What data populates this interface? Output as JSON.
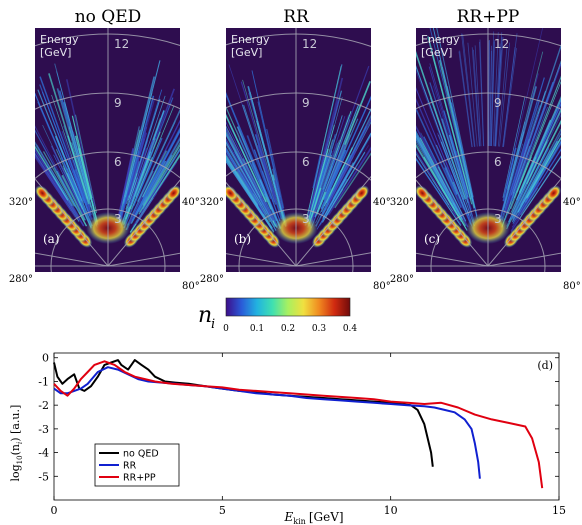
{
  "panels": [
    {
      "title": "no QED",
      "label": "(a)",
      "energy_title": "Energy",
      "energy_unit": "[GeV]",
      "ring_labels": [
        "12",
        "9",
        "6",
        "3"
      ],
      "angle_labels": [
        "320°",
        "40°",
        "280°",
        "80°"
      ]
    },
    {
      "title": "RR",
      "label": "(b)",
      "energy_title": "Energy",
      "energy_unit": "[GeV]",
      "ring_labels": [
        "12",
        "9",
        "6",
        "3"
      ],
      "angle_labels": [
        "320°",
        "40°",
        "280°",
        "80°"
      ]
    },
    {
      "title": "RR+PP",
      "label": "(c)",
      "energy_title": "Energy",
      "energy_unit": "[GeV]",
      "ring_labels": [
        "12",
        "9",
        "6",
        "3"
      ],
      "angle_labels": [
        "320°",
        "40°",
        "280°",
        "80°"
      ]
    }
  ],
  "colorbar": {
    "symbol": "n",
    "subscript": "i",
    "ticks": [
      "0",
      "0.1",
      "0.2",
      "0.3",
      "0.4"
    ],
    "range": [
      0,
      0.4
    ],
    "colors": [
      "#3d0e8a",
      "#2a5bd8",
      "#22b3e0",
      "#3fe0b0",
      "#a8f060",
      "#f0e040",
      "#f08a20",
      "#d02a10",
      "#700b0b"
    ]
  },
  "chart_data": {
    "type": "line",
    "panel_label": "(d)",
    "xlabel": "E",
    "xlabel_sub": "kin",
    "xlabel_unit": "[GeV]",
    "ylabel": "log",
    "ylabel_sub": "10",
    "ylabel_rest": "(n",
    "ylabel_rest_sub": "i",
    "ylabel_unit": ") [a.u.]",
    "xlim": [
      0,
      15
    ],
    "ylim": [
      -6,
      0.2
    ],
    "xticks": [
      "0",
      "5",
      "10",
      "15"
    ],
    "yticks": [
      "0",
      "-1",
      "-2",
      "-3",
      "-4",
      "-5"
    ],
    "legend_position": "bottom-left",
    "series": [
      {
        "name": "no QED",
        "color": "#000000",
        "x": [
          0,
          0.1,
          0.25,
          0.4,
          0.6,
          0.75,
          0.9,
          1.1,
          1.3,
          1.5,
          1.7,
          1.9,
          2.0,
          2.2,
          2.4,
          2.6,
          2.8,
          3.0,
          3.3,
          3.6,
          4,
          4.5,
          5,
          5.5,
          6,
          6.5,
          7,
          7.5,
          8,
          8.5,
          9,
          9.5,
          10,
          10.3,
          10.6,
          10.8,
          11.0,
          11.1,
          11.2,
          11.25
        ],
        "y": [
          -0.2,
          -0.8,
          -1.1,
          -0.9,
          -0.7,
          -1.3,
          -1.4,
          -1.2,
          -0.8,
          -0.3,
          -0.2,
          -0.1,
          -0.3,
          -0.5,
          -0.1,
          -0.3,
          -0.5,
          -0.8,
          -1.0,
          -1.05,
          -1.1,
          -1.2,
          -1.3,
          -1.4,
          -1.45,
          -1.55,
          -1.6,
          -1.65,
          -1.7,
          -1.75,
          -1.8,
          -1.85,
          -1.9,
          -1.95,
          -2.0,
          -2.2,
          -2.8,
          -3.4,
          -4.0,
          -4.6
        ]
      },
      {
        "name": "RR",
        "color": "#1020d0",
        "x": [
          0,
          0.2,
          0.4,
          0.6,
          0.8,
          1.0,
          1.3,
          1.6,
          1.9,
          2.2,
          2.5,
          2.8,
          3.2,
          3.6,
          4,
          4.5,
          5,
          5.5,
          6,
          6.5,
          7,
          7.5,
          8,
          8.5,
          9,
          9.5,
          10,
          10.5,
          11,
          11.3,
          11.6,
          11.9,
          12.2,
          12.4,
          12.5,
          12.6,
          12.65
        ],
        "y": [
          -1.3,
          -1.5,
          -1.5,
          -1.4,
          -1.3,
          -1.1,
          -0.6,
          -0.4,
          -0.5,
          -0.7,
          -0.9,
          -1.0,
          -1.05,
          -1.1,
          -1.15,
          -1.2,
          -1.3,
          -1.4,
          -1.5,
          -1.55,
          -1.6,
          -1.7,
          -1.75,
          -1.8,
          -1.85,
          -1.9,
          -1.95,
          -2.0,
          -2.05,
          -2.1,
          -2.2,
          -2.3,
          -2.6,
          -3.0,
          -3.6,
          -4.4,
          -5.1
        ]
      },
      {
        "name": "RR+PP",
        "color": "#e00010",
        "x": [
          0,
          0.2,
          0.4,
          0.6,
          0.8,
          1.0,
          1.2,
          1.5,
          1.8,
          2.1,
          2.4,
          2.7,
          3.0,
          3.5,
          4,
          4.5,
          5,
          5.5,
          6,
          6.5,
          7,
          7.5,
          8,
          8.5,
          9,
          9.5,
          10,
          10.5,
          11,
          11.5,
          12,
          12.5,
          13,
          13.5,
          14,
          14.2,
          14.4,
          14.5
        ],
        "y": [
          -1.1,
          -1.4,
          -1.6,
          -1.3,
          -0.9,
          -0.6,
          -0.3,
          -0.15,
          -0.3,
          -0.6,
          -0.8,
          -0.9,
          -1.0,
          -1.1,
          -1.15,
          -1.2,
          -1.25,
          -1.35,
          -1.4,
          -1.45,
          -1.5,
          -1.55,
          -1.6,
          -1.65,
          -1.7,
          -1.75,
          -1.85,
          -1.9,
          -1.95,
          -1.9,
          -2.1,
          -2.4,
          -2.6,
          -2.75,
          -2.9,
          -3.4,
          -4.4,
          -5.5
        ]
      }
    ]
  }
}
